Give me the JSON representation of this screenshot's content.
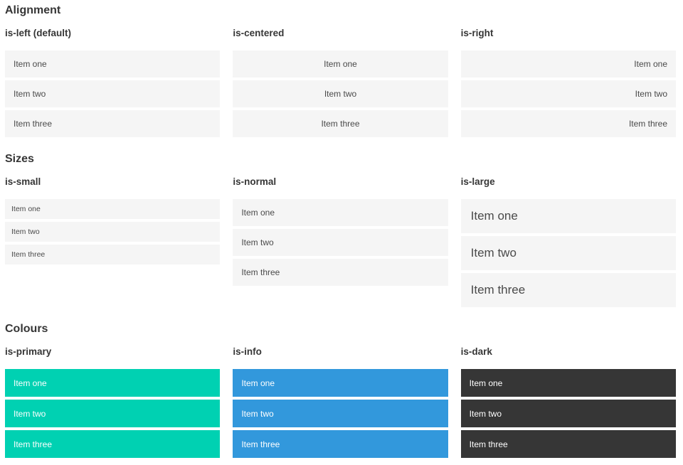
{
  "colors": {
    "page_background": "#ffffff",
    "heading_text": "#363636",
    "item_background": "#f5f5f5",
    "item_text": "#4a4a4a",
    "item_text_on_color": "#ffffff",
    "primary": "#00d1b2",
    "info": "#3298dc",
    "dark": "#363636"
  },
  "sections": [
    {
      "title": "Alignment",
      "columns": [
        {
          "label": "is-left (default)",
          "items": [
            "Item one",
            "Item two",
            "Item three"
          ]
        },
        {
          "label": "is-centered",
          "items": [
            "Item one",
            "Item two",
            "Item three"
          ]
        },
        {
          "label": "is-right",
          "items": [
            "Item one",
            "Item two",
            "Item three"
          ]
        }
      ]
    },
    {
      "title": "Sizes",
      "columns": [
        {
          "label": "is-small",
          "items": [
            "Item one",
            "Item two",
            "Item three"
          ]
        },
        {
          "label": "is-normal",
          "items": [
            "Item one",
            "Item two",
            "Item three"
          ]
        },
        {
          "label": "is-large",
          "items": [
            "Item one",
            "Item two",
            "Item three"
          ]
        }
      ]
    },
    {
      "title": "Colours",
      "columns": [
        {
          "label": "is-primary",
          "items": [
            "Item one",
            "Item two",
            "Item three"
          ]
        },
        {
          "label": "is-info",
          "items": [
            "Item one",
            "Item two",
            "Item three"
          ]
        },
        {
          "label": "is-dark",
          "items": [
            "Item one",
            "Item two",
            "Item three"
          ]
        }
      ]
    }
  ]
}
